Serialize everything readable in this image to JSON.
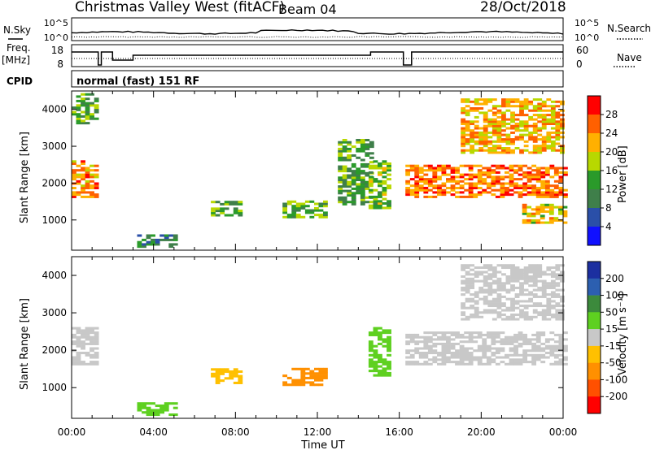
{
  "header": {
    "station": "Christmas Valley West (fitACF)",
    "beam": "Beam 04",
    "date": "28/Oct/2018"
  },
  "mode_text": "normal (fast) 151 RF",
  "labels": {
    "nsky": "N.Sky",
    "nsearch": "N.Search",
    "freq": "Freq.",
    "freq_unit": "[MHz]",
    "nave": "Nave",
    "cpid": "CPID",
    "slant_range": "Slant Range [km]",
    "time_ut": "Time UT",
    "power": "Power [dB]",
    "velocity": "Velocity [m s⁻¹]"
  },
  "chart_data": [
    {
      "type": "line",
      "name": "noise-panel",
      "ylabel_left": "N.Sky",
      "ylabel_right": "N.Search",
      "left_ticks": [
        "10^5",
        "10^0"
      ],
      "right_ticks": [
        "10^5",
        "10^0"
      ],
      "x_ticks": [
        "00:00",
        "04:00",
        "08:00",
        "12:00",
        "16:00",
        "20:00",
        "00:00"
      ],
      "xlim_hours": [
        0,
        24
      ]
    },
    {
      "type": "line",
      "name": "frequency-panel",
      "ylabel_left": "Freq. [MHz]",
      "ylabel_right": "Nave",
      "left_ticks": [
        18,
        8
      ],
      "right_ticks": [
        60,
        0
      ]
    },
    {
      "type": "heatmap",
      "name": "power-panel",
      "xlabel": "",
      "ylabel": "Slant Range [km]",
      "y_ticks": [
        1000,
        2000,
        3000,
        4000
      ],
      "ylim": [
        180,
        4500
      ],
      "xlim_hours": [
        0,
        24
      ],
      "colorbar": {
        "label": "Power [dB]",
        "ticks": [
          4,
          8,
          12,
          16,
          20,
          24,
          28
        ],
        "colors": [
          "#1010ff",
          "#2a4fa8",
          "#3f7f4a",
          "#2a9a2a",
          "#b8d800",
          "#ffb000",
          "#ff6000",
          "#ff0000"
        ]
      },
      "regions": [
        {
          "t": [
            0.0,
            1.3
          ],
          "r": [
            1600,
            2600
          ],
          "value": 24
        },
        {
          "t": [
            0.0,
            1.2
          ],
          "r": [
            3600,
            4400
          ],
          "value": 14
        },
        {
          "t": [
            3.2,
            5.0
          ],
          "r": [
            250,
            600
          ],
          "value": 10
        },
        {
          "t": [
            6.8,
            8.2
          ],
          "r": [
            1100,
            1500
          ],
          "value": 14
        },
        {
          "t": [
            10.3,
            12.5
          ],
          "r": [
            1050,
            1500
          ],
          "value": 15
        },
        {
          "t": [
            13.0,
            14.6
          ],
          "r": [
            1400,
            3200
          ],
          "value": 13
        },
        {
          "t": [
            14.5,
            15.4
          ],
          "r": [
            1300,
            2600
          ],
          "value": 16
        },
        {
          "t": [
            16.3,
            24.0
          ],
          "r": [
            1600,
            2500
          ],
          "value": 25
        },
        {
          "t": [
            19.0,
            24.0
          ],
          "r": [
            2800,
            4300
          ],
          "value": 22
        },
        {
          "t": [
            22.0,
            24.0
          ],
          "r": [
            900,
            1400
          ],
          "value": 20
        }
      ]
    },
    {
      "type": "heatmap",
      "name": "velocity-panel",
      "xlabel": "Time UT",
      "ylabel": "Slant Range [km]",
      "y_ticks": [
        1000,
        2000,
        3000,
        4000
      ],
      "ylim": [
        180,
        4500
      ],
      "xlim_hours": [
        0,
        24
      ],
      "x_ticks": [
        "00:00",
        "04:00",
        "08:00",
        "12:00",
        "16:00",
        "20:00",
        "00:00"
      ],
      "colorbar": {
        "label": "Velocity [m s⁻¹]",
        "ticks": [
          200,
          100,
          50,
          15,
          -15,
          -50,
          -100,
          -200
        ],
        "colors": [
          "#1c2fa0",
          "#2c5fb0",
          "#3c8a3c",
          "#5ed020",
          "#c8c8c8",
          "#ffc000",
          "#ff9000",
          "#ff5000",
          "#ff0000"
        ]
      },
      "regions": [
        {
          "t": [
            0.0,
            1.3
          ],
          "r": [
            1600,
            2600
          ],
          "value": 0
        },
        {
          "t": [
            3.2,
            5.0
          ],
          "r": [
            250,
            600
          ],
          "value": 40
        },
        {
          "t": [
            6.8,
            8.2
          ],
          "r": [
            1100,
            1500
          ],
          "value": -40
        },
        {
          "t": [
            10.3,
            12.5
          ],
          "r": [
            1050,
            1500
          ],
          "value": -60
        },
        {
          "t": [
            14.5,
            15.4
          ],
          "r": [
            1300,
            2600
          ],
          "value": 40
        },
        {
          "t": [
            16.3,
            24.0
          ],
          "r": [
            1600,
            2500
          ],
          "value": 0
        },
        {
          "t": [
            19.0,
            24.0
          ],
          "r": [
            2800,
            4300
          ],
          "value": 0
        }
      ]
    }
  ]
}
